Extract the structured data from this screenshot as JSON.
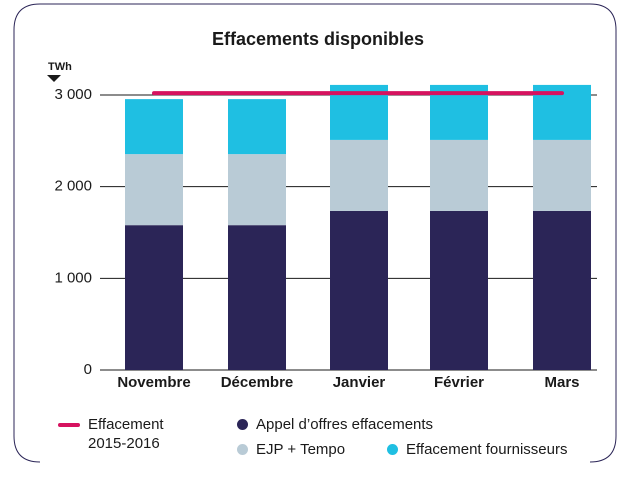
{
  "chart_data": {
    "type": "bar",
    "stacked": true,
    "title": "Effacements disponibles",
    "y_axis_label": "TWh",
    "categories": [
      "Novembre",
      "Décembre",
      "Janvier",
      "Février",
      "Mars"
    ],
    "series": [
      {
        "name": "Appel d’offres effacements",
        "color": "#2b2557",
        "values": [
          1580,
          1580,
          1735,
          1735,
          1735
        ]
      },
      {
        "name": "EJP + Tempo",
        "color": "#b9cbd6",
        "values": [
          775,
          775,
          775,
          775,
          775
        ]
      },
      {
        "name": "Effacement fournisseurs",
        "color": "#1fbfe2",
        "values": [
          600,
          600,
          600,
          600,
          600
        ]
      },
      {
        "name": "Effacement 2015-2016",
        "color": "#d6125f",
        "type": "line",
        "values": [
          3020,
          3020,
          3020,
          3020,
          3020
        ]
      }
    ],
    "ylim": [
      0,
      3200
    ],
    "yticks": [
      0,
      {
        "value": 1000,
        "label": "1 000"
      },
      {
        "value": 2000,
        "label": "2 000"
      },
      {
        "value": 3000,
        "label": "3 000"
      }
    ],
    "grid": true,
    "legend": "bottom"
  }
}
